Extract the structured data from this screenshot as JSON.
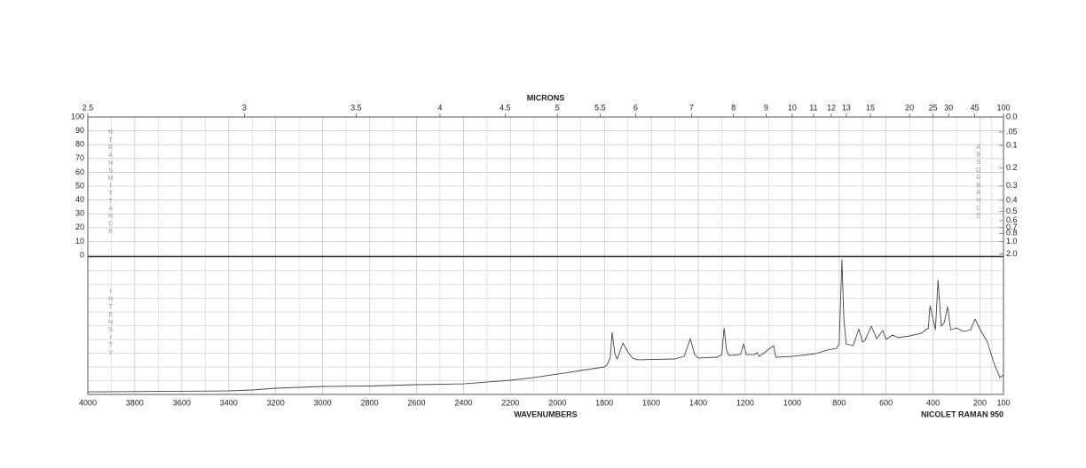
{
  "chart_data": {
    "type": "line",
    "top_axis_label": "MICRONS",
    "x_label": "WAVENUMBERS",
    "instrument": "NICOLET RAMAN 950",
    "transmittance_label": [
      "%",
      "TRANSMITTANCE"
    ],
    "absorbance_label": "ABSORBANCE",
    "intensity_label": "INTENSITY",
    "xlim": [
      4000,
      100
    ],
    "xticks": [
      4000,
      3800,
      3600,
      3400,
      3200,
      3000,
      2800,
      2600,
      2400,
      2200,
      2000,
      1800,
      1600,
      1400,
      1200,
      1000,
      800,
      600,
      400,
      200,
      100
    ],
    "micron_ticks": [
      2.5,
      3,
      3.5,
      4,
      4.5,
      5,
      5.5,
      6,
      7,
      8,
      9,
      10,
      11,
      12,
      13,
      15,
      20,
      25,
      30,
      45,
      100
    ],
    "transmittance_lim": [
      0,
      100
    ],
    "transmittance_ticks": [
      100,
      90,
      80,
      70,
      60,
      50,
      40,
      30,
      20,
      10,
      0
    ],
    "absorbance_ticks": [
      {
        "value": 0,
        "label": "0.0"
      },
      {
        "value": 0.05,
        "label": ".05"
      },
      0.1,
      0.2,
      0.3,
      0.4,
      0.5,
      0.6,
      0.7,
      0.8,
      {
        "value": 1,
        "label": "1.0"
      },
      {
        "value": 2,
        "label": "2.0"
      }
    ],
    "ylim": [
      0,
      100
    ],
    "grid": true,
    "color": "#444444",
    "x": [
      4000,
      3400,
      3300,
      3200,
      3000,
      2800,
      2600,
      2400,
      2300,
      2200,
      2100,
      2000,
      1900,
      1800,
      1790,
      1775,
      1767,
      1755,
      1745,
      1721,
      1700,
      1680,
      1660,
      1500,
      1460,
      1434,
      1415,
      1400,
      1320,
      1300,
      1290,
      1280,
      1270,
      1220,
      1207,
      1195,
      1160,
      1150,
      1140,
      1079,
      1070,
      1000,
      900,
      850,
      810,
      800,
      788,
      780,
      770,
      740,
      716,
      700,
      690,
      663,
      640,
      614,
      600,
      572,
      550,
      500,
      450,
      420,
      413,
      390,
      379,
      365,
      352,
      338,
      325,
      300,
      270,
      240,
      221,
      195,
      170,
      140,
      115,
      100
    ],
    "values": [
      1.9,
      2.6,
      3.2,
      4.5,
      5.8,
      6.1,
      7.1,
      7.7,
      9.0,
      10.3,
      12.3,
      14.8,
      17.4,
      20.0,
      21.3,
      26.5,
      45.2,
      29.0,
      25.8,
      37.4,
      31.0,
      26.5,
      25.2,
      25.8,
      27.7,
      40.6,
      29.0,
      26.5,
      27.1,
      29.0,
      48.4,
      32.3,
      28.4,
      29.0,
      36.8,
      29.0,
      29.0,
      30.3,
      27.7,
      35.5,
      27.1,
      27.7,
      29.7,
      32.3,
      33.5,
      36.8,
      98.1,
      54.8,
      36.8,
      35.5,
      47.7,
      38.1,
      39.4,
      49.7,
      40.6,
      46.5,
      40.0,
      43.2,
      41.3,
      42.6,
      44.5,
      48.4,
      64.5,
      47.1,
      83.2,
      49.7,
      52.3,
      63.9,
      47.1,
      48.4,
      45.8,
      47.1,
      54.8,
      45.8,
      38.7,
      22.6,
      12.3,
      14.2
    ]
  }
}
